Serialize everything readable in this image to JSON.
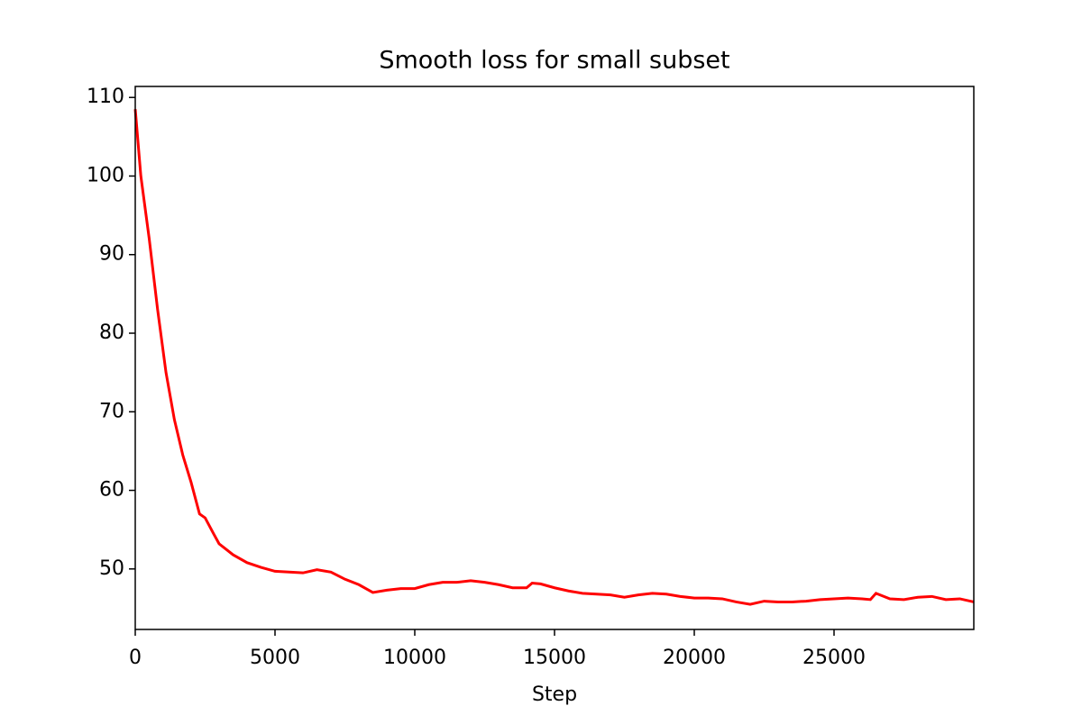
{
  "chart_data": {
    "type": "line",
    "title": "Smooth loss for small subset",
    "xlabel": "Step",
    "x": [
      0,
      200,
      500,
      800,
      1100,
      1400,
      1700,
      2000,
      2300,
      2500,
      2800,
      3000,
      3500,
      4000,
      4500,
      5000,
      5500,
      6000,
      6500,
      7000,
      7500,
      8000,
      8500,
      9000,
      9500,
      10000,
      10500,
      11000,
      11500,
      12000,
      12500,
      13000,
      13500,
      14000,
      14200,
      14500,
      15000,
      15500,
      16000,
      16500,
      17000,
      17500,
      18000,
      18500,
      19000,
      19500,
      20000,
      20500,
      21000,
      21500,
      22000,
      22500,
      23000,
      23500,
      24000,
      24500,
      25000,
      25500,
      26000,
      26300,
      26500,
      27000,
      27500,
      28000,
      28500,
      29000,
      29500,
      30000
    ],
    "series": [
      {
        "name": "Smooth loss",
        "color": "#ff0000",
        "values": [
          108.5,
          100,
          92,
          83,
          75,
          69,
          64.5,
          61,
          57,
          56.5,
          54.5,
          53.2,
          51.8,
          50.8,
          50.2,
          49.7,
          49.6,
          49.5,
          49.9,
          49.6,
          48.7,
          48,
          47,
          47.3,
          47.5,
          47.5,
          48,
          48.3,
          48.3,
          48.5,
          48.3,
          48,
          47.6,
          47.6,
          48.2,
          48.1,
          47.6,
          47.2,
          46.9,
          46.8,
          46.7,
          46.4,
          46.7,
          46.9,
          46.8,
          46.5,
          46.3,
          46.3,
          46.2,
          45.8,
          45.5,
          45.9,
          45.8,
          45.8,
          45.9,
          46.1,
          46.2,
          46.3,
          46.2,
          46.1,
          46.9,
          46.2,
          46.1,
          46.4,
          46.5,
          46.1,
          46.2,
          45.8
        ]
      }
    ],
    "xlim": [
      0,
      30000
    ],
    "xticks": [
      0,
      5000,
      10000,
      15000,
      20000,
      25000
    ],
    "ylim": [
      42.3,
      111.4
    ],
    "yticks": [
      50,
      60,
      70,
      80,
      90,
      100,
      110
    ],
    "grid": false
  }
}
